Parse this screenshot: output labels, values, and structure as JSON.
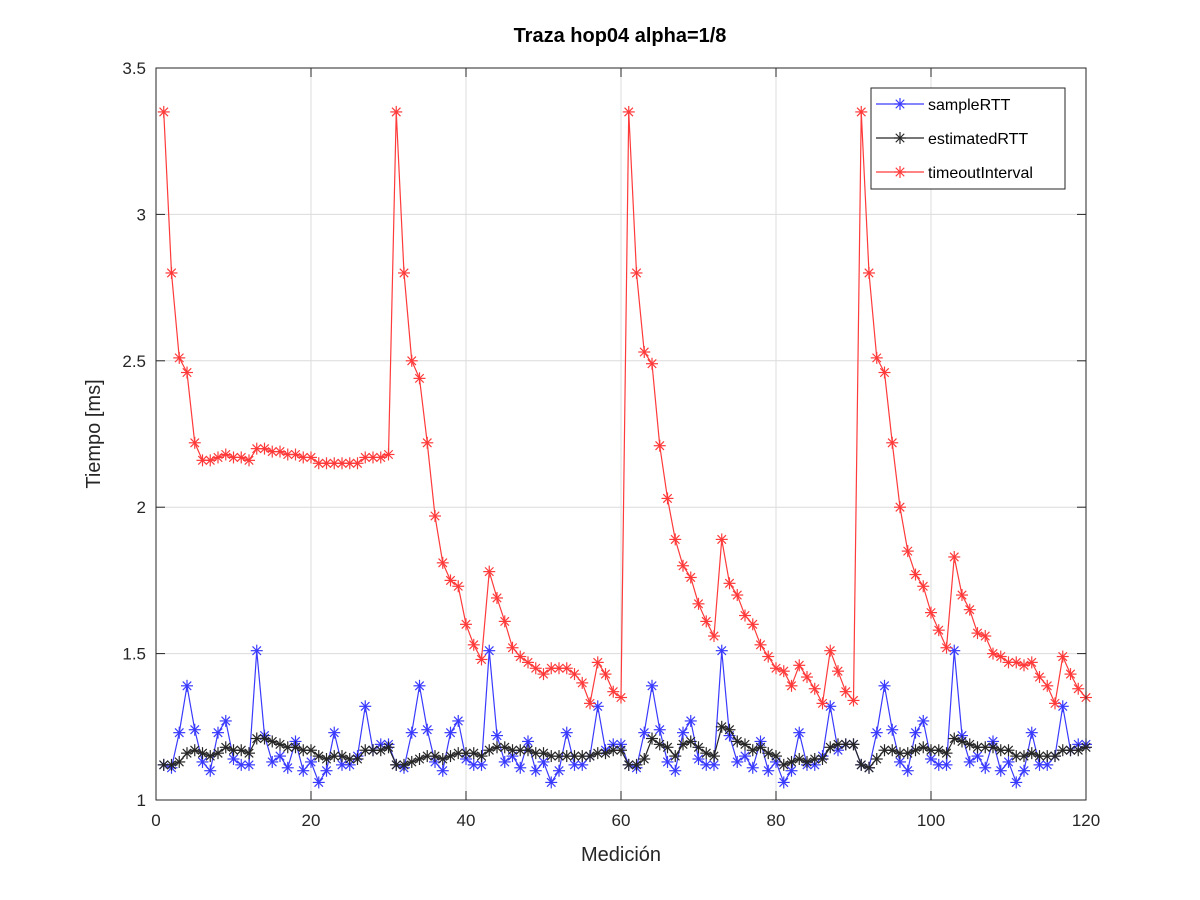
{
  "chart_data": {
    "type": "line",
    "title": "Traza hop04 alpha=1/8",
    "xlabel": "Medición",
    "ylabel": "Tiempo [ms]",
    "xlim": [
      0,
      120
    ],
    "ylim": [
      1,
      3.5
    ],
    "xticks": [
      0,
      20,
      40,
      60,
      80,
      100,
      120
    ],
    "yticks": [
      1,
      1.5,
      2,
      2.5,
      3,
      3.5
    ],
    "x_tick_labels": [
      "0",
      "20",
      "40",
      "60",
      "80",
      "100",
      "120"
    ],
    "y_tick_labels": [
      "1",
      "1.5",
      "2",
      "2.5",
      "3",
      "3.5"
    ],
    "grid": true,
    "legend_position": "top-right",
    "marker": "asterisk",
    "series": [
      {
        "name": "sampleRTT",
        "color": "#3a3aff",
        "values": [
          1.12,
          1.11,
          1.23,
          1.39,
          1.24,
          1.13,
          1.1,
          1.23,
          1.27,
          1.14,
          1.12,
          1.12,
          1.51,
          1.22,
          1.13,
          1.15,
          1.11,
          1.2,
          1.1,
          1.13,
          1.06,
          1.1,
          1.23,
          1.12,
          1.12,
          1.15,
          1.32,
          1.17,
          1.19,
          1.19,
          1.12,
          1.11,
          1.23,
          1.39,
          1.24,
          1.13,
          1.1,
          1.23,
          1.27,
          1.14,
          1.12,
          1.12,
          1.51,
          1.22,
          1.13,
          1.15,
          1.11,
          1.2,
          1.1,
          1.13,
          1.06,
          1.1,
          1.23,
          1.12,
          1.12,
          1.15,
          1.32,
          1.17,
          1.19,
          1.19,
          1.12,
          1.11,
          1.23,
          1.39,
          1.24,
          1.13,
          1.1,
          1.23,
          1.27,
          1.14,
          1.12,
          1.12,
          1.51,
          1.22,
          1.13,
          1.15,
          1.11,
          1.2,
          1.1,
          1.13,
          1.06,
          1.1,
          1.23,
          1.12,
          1.12,
          1.15,
          1.32,
          1.17,
          1.19,
          1.19,
          1.12,
          1.11,
          1.23,
          1.39,
          1.24,
          1.13,
          1.1,
          1.23,
          1.27,
          1.14,
          1.12,
          1.12,
          1.51,
          1.22,
          1.13,
          1.15,
          1.11,
          1.2,
          1.1,
          1.13,
          1.06,
          1.1,
          1.23,
          1.12,
          1.12,
          1.15,
          1.32,
          1.17,
          1.19,
          1.19
        ]
      },
      {
        "name": "estimatedRTT",
        "color": "#262626",
        "values": [
          1.12,
          1.12,
          1.13,
          1.16,
          1.17,
          1.16,
          1.15,
          1.16,
          1.18,
          1.17,
          1.17,
          1.16,
          1.21,
          1.21,
          1.2,
          1.19,
          1.18,
          1.18,
          1.17,
          1.17,
          1.15,
          1.14,
          1.15,
          1.15,
          1.14,
          1.14,
          1.17,
          1.17,
          1.17,
          1.18,
          1.12,
          1.12,
          1.13,
          1.14,
          1.15,
          1.15,
          1.14,
          1.15,
          1.16,
          1.16,
          1.16,
          1.15,
          1.17,
          1.18,
          1.18,
          1.17,
          1.17,
          1.17,
          1.16,
          1.16,
          1.15,
          1.15,
          1.15,
          1.15,
          1.15,
          1.15,
          1.16,
          1.16,
          1.17,
          1.17,
          1.12,
          1.12,
          1.14,
          1.21,
          1.19,
          1.18,
          1.15,
          1.19,
          1.2,
          1.18,
          1.16,
          1.15,
          1.25,
          1.24,
          1.2,
          1.19,
          1.17,
          1.18,
          1.16,
          1.15,
          1.12,
          1.13,
          1.14,
          1.13,
          1.14,
          1.14,
          1.18,
          1.19,
          1.19,
          1.19,
          1.12,
          1.11,
          1.14,
          1.17,
          1.17,
          1.16,
          1.16,
          1.17,
          1.18,
          1.17,
          1.17,
          1.16,
          1.21,
          1.2,
          1.19,
          1.18,
          1.18,
          1.18,
          1.17,
          1.17,
          1.15,
          1.15,
          1.16,
          1.15,
          1.15,
          1.15,
          1.17,
          1.17,
          1.17,
          1.18
        ]
      },
      {
        "name": "timeoutInterval",
        "color": "#ff3a3a",
        "values": [
          3.35,
          2.8,
          2.51,
          2.46,
          2.22,
          2.16,
          2.16,
          2.17,
          2.18,
          2.17,
          2.17,
          2.16,
          2.2,
          2.2,
          2.19,
          2.19,
          2.18,
          2.18,
          2.17,
          2.17,
          2.15,
          2.15,
          2.15,
          2.15,
          2.15,
          2.15,
          2.17,
          2.17,
          2.17,
          2.18,
          3.35,
          2.8,
          2.5,
          2.44,
          2.22,
          1.97,
          1.81,
          1.75,
          1.73,
          1.6,
          1.53,
          1.48,
          1.78,
          1.69,
          1.61,
          1.52,
          1.49,
          1.47,
          1.45,
          1.43,
          1.45,
          1.45,
          1.45,
          1.43,
          1.4,
          1.33,
          1.47,
          1.43,
          1.37,
          1.35,
          3.35,
          2.8,
          2.53,
          2.49,
          2.21,
          2.03,
          1.89,
          1.8,
          1.76,
          1.67,
          1.61,
          1.56,
          1.89,
          1.74,
          1.7,
          1.63,
          1.6,
          1.53,
          1.49,
          1.45,
          1.44,
          1.39,
          1.46,
          1.42,
          1.38,
          1.33,
          1.51,
          1.44,
          1.37,
          1.34,
          3.35,
          2.8,
          2.51,
          2.46,
          2.22,
          2.0,
          1.85,
          1.77,
          1.73,
          1.64,
          1.58,
          1.52,
          1.83,
          1.7,
          1.65,
          1.57,
          1.56,
          1.5,
          1.49,
          1.47,
          1.47,
          1.46,
          1.47,
          1.42,
          1.39,
          1.33,
          1.49,
          1.43,
          1.38,
          1.35
        ]
      }
    ]
  }
}
